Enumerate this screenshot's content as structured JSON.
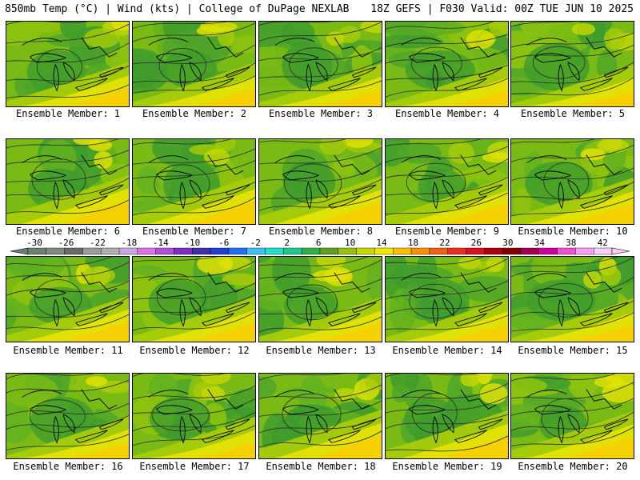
{
  "header": {
    "title_left": "850mb Temp (°C) | Wind (kts) | College of DuPage NEXLAB",
    "title_right": "18Z GEFS | F030 Valid: 00Z TUE JUN 10 2025"
  },
  "panels": [
    {
      "label": "Ensemble Member: 1"
    },
    {
      "label": "Ensemble Member: 2"
    },
    {
      "label": "Ensemble Member: 3"
    },
    {
      "label": "Ensemble Member: 4"
    },
    {
      "label": "Ensemble Member: 5"
    },
    {
      "label": "Ensemble Member: 6"
    },
    {
      "label": "Ensemble Member: 7"
    },
    {
      "label": "Ensemble Member: 8"
    },
    {
      "label": "Ensemble Member: 9"
    },
    {
      "label": "Ensemble Member: 10"
    },
    {
      "label": "Ensemble Member: 11"
    },
    {
      "label": "Ensemble Member: 12"
    },
    {
      "label": "Ensemble Member: 13"
    },
    {
      "label": "Ensemble Member: 14"
    },
    {
      "label": "Ensemble Member: 15"
    },
    {
      "label": "Ensemble Member: 16"
    },
    {
      "label": "Ensemble Member: 17"
    },
    {
      "label": "Ensemble Member: 18"
    },
    {
      "label": "Ensemble Member: 19"
    },
    {
      "label": "Ensemble Member: 20"
    }
  ],
  "colorbar": {
    "tick_labels": [
      "-30",
      "-26",
      "-22",
      "-18",
      "-14",
      "-10",
      "-6",
      "-2",
      "2",
      "6",
      "10",
      "14",
      "18",
      "22",
      "26",
      "30",
      "34",
      "38",
      "42"
    ],
    "colors": [
      "#6f7f6f",
      "#808a80",
      "#6a6a6a",
      "#9a9a9a",
      "#b0b0b0",
      "#c8a8e0",
      "#e070e8",
      "#b050d8",
      "#8030c0",
      "#4030a8",
      "#2040d0",
      "#2070f0",
      "#40c0f0",
      "#20e0d0",
      "#20c890",
      "#30b040",
      "#60a020",
      "#98c010",
      "#c8d800",
      "#f0e800",
      "#f8c000",
      "#f89000",
      "#f06010",
      "#e83020",
      "#d81020",
      "#b00010",
      "#800000",
      "#a00050",
      "#d000a0",
      "#f050d0",
      "#f8a0f0",
      "#f8d0f8"
    ],
    "min": -30,
    "step": 2,
    "units": "°C"
  },
  "palette": {
    "greens": [
      "#3f9c2c",
      "#50a628",
      "#63b21f",
      "#79bb14",
      "#8dc30e"
    ],
    "yellows": [
      "#a8cc08",
      "#c6d804",
      "#e4e204",
      "#f4e600",
      "#f7d000",
      "#f2bf00"
    ],
    "contour_color": "#2a2a2a",
    "coast_color": "#000000"
  }
}
